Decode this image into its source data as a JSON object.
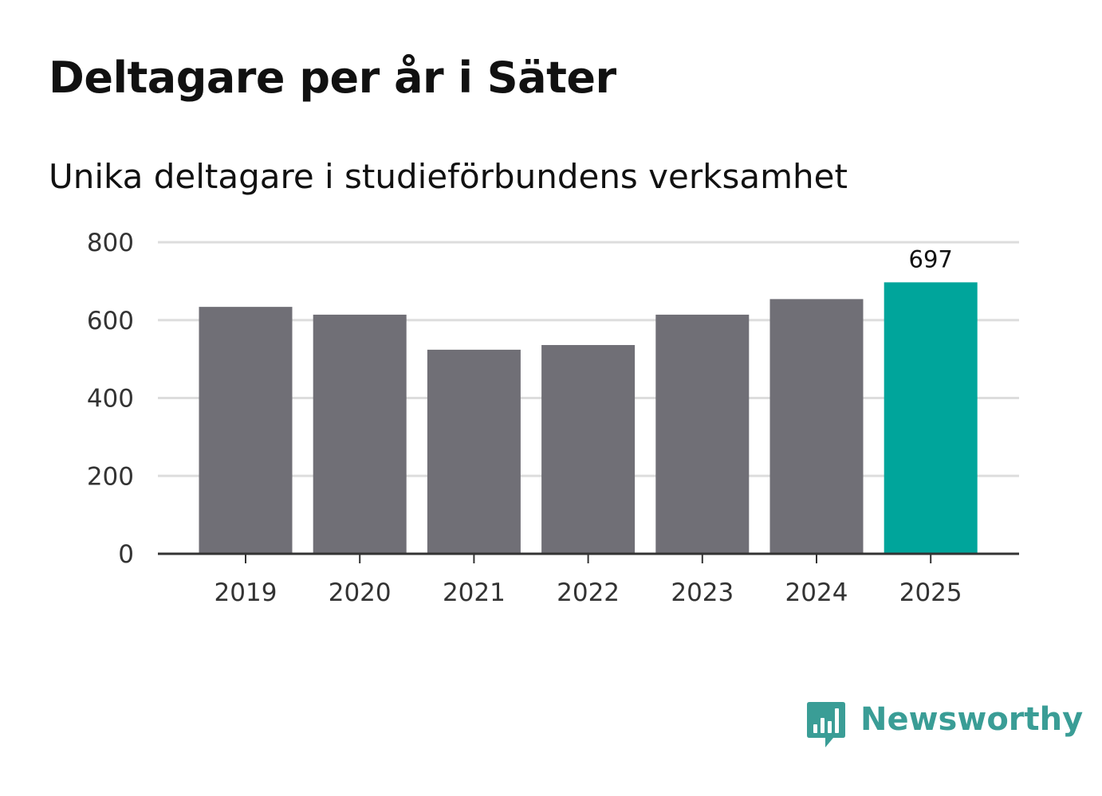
{
  "title": "Deltagare per år i Säter",
  "subtitle": "Unika deltagare i studieförbundens verksamhet",
  "colors": {
    "bar": "#706f76",
    "highlight": "#00a59b",
    "grid": "#dddddd",
    "axis": "#333333",
    "brand": "#3a9d96"
  },
  "chart_data": {
    "type": "bar",
    "title": "Deltagare per år i Säter",
    "subtitle": "Unika deltagare i studieförbundens verksamhet",
    "categories": [
      "2019",
      "2020",
      "2021",
      "2022",
      "2023",
      "2024",
      "2025"
    ],
    "values": [
      634,
      614,
      524,
      536,
      614,
      654,
      697
    ],
    "highlight_index": 6,
    "data_labels": [
      {
        "index": 6,
        "text": "697"
      }
    ],
    "y_ticks": [
      0,
      200,
      400,
      600,
      800
    ],
    "y_tick_labels": [
      "0",
      "200",
      "400",
      "600",
      "800"
    ],
    "ylim": [
      0,
      800
    ],
    "xlabel": "",
    "ylabel": "",
    "grid": true
  },
  "logo": {
    "icon": "newsworthy-bar-chart-icon",
    "text": "Newsworthy"
  }
}
